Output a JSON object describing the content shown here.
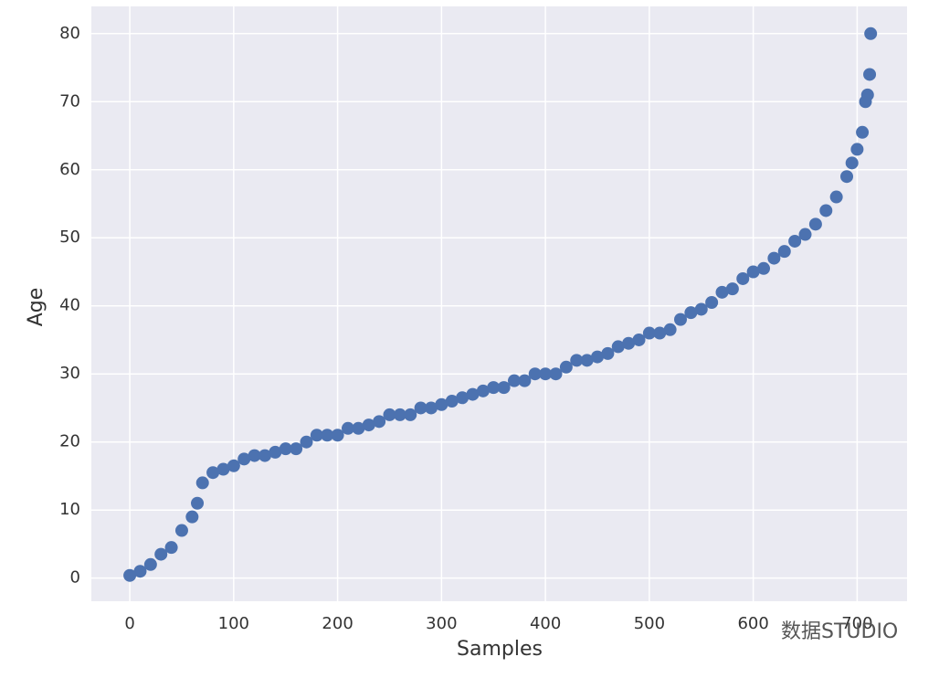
{
  "chart_data": {
    "type": "scatter",
    "xlabel": "Samples",
    "ylabel": "Age",
    "color": "#4c72b0",
    "grid": true,
    "xlim": [
      -37,
      748
    ],
    "ylim": [
      -3.4,
      84
    ],
    "xticks": [
      0,
      100,
      200,
      300,
      400,
      500,
      600,
      700
    ],
    "yticks": [
      0,
      10,
      20,
      30,
      40,
      50,
      60,
      70,
      80
    ],
    "annotation": "数据STUDIO",
    "x": [
      0,
      10,
      20,
      30,
      40,
      50,
      60,
      65,
      70,
      80,
      90,
      100,
      110,
      120,
      130,
      140,
      150,
      160,
      170,
      180,
      190,
      200,
      210,
      220,
      230,
      240,
      250,
      260,
      270,
      280,
      290,
      300,
      310,
      320,
      330,
      340,
      350,
      360,
      370,
      380,
      390,
      400,
      410,
      420,
      430,
      440,
      450,
      460,
      470,
      480,
      490,
      500,
      510,
      520,
      530,
      540,
      550,
      560,
      570,
      580,
      590,
      600,
      610,
      620,
      630,
      640,
      650,
      660,
      670,
      680,
      690,
      695,
      700,
      705,
      708,
      710,
      712,
      713
    ],
    "values": [
      0.4,
      1,
      2,
      3.5,
      4.5,
      7,
      9,
      11,
      14,
      15.5,
      16,
      16.5,
      17.5,
      18,
      18,
      18.5,
      19,
      19,
      20,
      21,
      21,
      21,
      22,
      22,
      22.5,
      23,
      24,
      24,
      24,
      25,
      25,
      25.5,
      26,
      26.5,
      27,
      27.5,
      28,
      28,
      29,
      29,
      30,
      30,
      30,
      31,
      32,
      32,
      32.5,
      33,
      34,
      34.5,
      35,
      36,
      36,
      36.5,
      38,
      39,
      39.5,
      40.5,
      42,
      42.5,
      44,
      45,
      45.5,
      47,
      48,
      49.5,
      50.5,
      52,
      54,
      56,
      59,
      61,
      63,
      65.5,
      70,
      71,
      74,
      80
    ]
  }
}
